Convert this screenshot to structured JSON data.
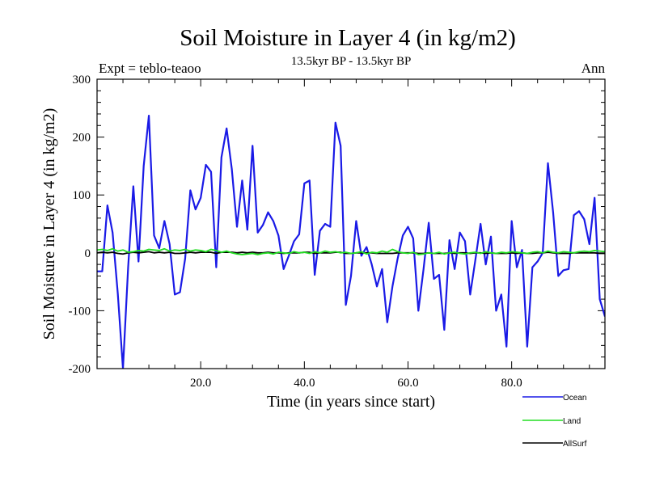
{
  "chart_data": {
    "type": "line",
    "title": "Soil Moisture in Layer 4 (in kg/m2)",
    "subtitle": "13.5kyr BP - 13.5kyr BP",
    "left_label": "Expt = teblo-teaoo",
    "right_label": "Ann",
    "xlabel": "Time (in years since start)",
    "ylabel": "Soil Moisture in Layer 4 (in kg/m2)",
    "xlim": [
      0,
      98
    ],
    "ylim": [
      -200,
      300
    ],
    "xticks": [
      20,
      40,
      60,
      80
    ],
    "xtick_labels": [
      "20.0",
      "40.0",
      "60.0",
      "80.0"
    ],
    "yticks": [
      -200,
      -100,
      0,
      100,
      200,
      300
    ],
    "ytick_labels": [
      "-200",
      "-100",
      "0",
      "100",
      "200",
      "300"
    ],
    "x": [
      0,
      1,
      2,
      3,
      4,
      5,
      6,
      7,
      8,
      9,
      10,
      11,
      12,
      13,
      14,
      15,
      16,
      17,
      18,
      19,
      20,
      21,
      22,
      23,
      24,
      25,
      26,
      27,
      28,
      29,
      30,
      31,
      32,
      33,
      34,
      35,
      36,
      37,
      38,
      39,
      40,
      41,
      42,
      43,
      44,
      45,
      46,
      47,
      48,
      49,
      50,
      51,
      52,
      53,
      54,
      55,
      56,
      57,
      58,
      59,
      60,
      61,
      62,
      63,
      64,
      65,
      66,
      67,
      68,
      69,
      70,
      71,
      72,
      73,
      74,
      75,
      76,
      77,
      78,
      79,
      80,
      81,
      82,
      83,
      84,
      85,
      86,
      87,
      88,
      89,
      90,
      91,
      92,
      93,
      94,
      95,
      96,
      97,
      98
    ],
    "series": [
      {
        "name": "Ocean",
        "color": "#1a1ae6",
        "values": [
          -32,
          -32,
          82,
          35,
          -70,
          -200,
          -25,
          115,
          -15,
          150,
          237,
          30,
          8,
          55,
          15,
          -72,
          -68,
          -10,
          108,
          75,
          95,
          152,
          140,
          -25,
          165,
          215,
          145,
          45,
          125,
          40,
          185,
          35,
          48,
          70,
          55,
          30,
          -28,
          -5,
          20,
          32,
          120,
          125,
          -38,
          38,
          50,
          45,
          225,
          185,
          -90,
          -40,
          55,
          -5,
          10,
          -20,
          -58,
          -28,
          -120,
          -58,
          -10,
          30,
          45,
          25,
          -100,
          -28,
          52,
          -45,
          -38,
          -133,
          22,
          -28,
          35,
          20,
          -72,
          -12,
          50,
          -20,
          28,
          -100,
          -72,
          -162,
          55,
          -25,
          5,
          -162,
          -25,
          -15,
          0,
          155,
          70,
          -40,
          -30,
          -28,
          65,
          72,
          58,
          15,
          95,
          -80,
          -110
        ]
      },
      {
        "name": "Land",
        "color": "#22dd22",
        "values": [
          5,
          6,
          4,
          7,
          3,
          5,
          1,
          2,
          4,
          3,
          6,
          5,
          4,
          7,
          3,
          5,
          4,
          6,
          3,
          5,
          4,
          2,
          6,
          4,
          1,
          3,
          0,
          -2,
          -3,
          -2,
          -1,
          -3,
          -1,
          0,
          -2,
          1,
          0,
          -1,
          2,
          0,
          1,
          -1,
          2,
          0,
          3,
          1,
          2,
          0,
          1,
          -1,
          0,
          2,
          -2,
          1,
          0,
          3,
          1,
          6,
          2,
          0,
          -1,
          1,
          -3,
          -2,
          0,
          -1,
          1,
          -2,
          0,
          1,
          -1,
          -2,
          0,
          1,
          -1,
          2,
          0,
          -1,
          1,
          0,
          2,
          1,
          0,
          -1,
          1,
          2,
          0,
          3,
          1,
          0,
          2,
          1,
          0,
          2,
          3,
          2,
          4,
          3,
          2
        ]
      },
      {
        "name": "AllSurf",
        "color": "#000000",
        "values": [
          0,
          1,
          0,
          1,
          -1,
          -2,
          0,
          1,
          0,
          1,
          2,
          0,
          1,
          0,
          1,
          -1,
          -1,
          0,
          1,
          0,
          1,
          1,
          1,
          -1,
          1,
          1,
          1,
          0,
          1,
          0,
          1,
          0,
          0,
          1,
          0,
          0,
          -1,
          0,
          0,
          0,
          1,
          1,
          -1,
          0,
          0,
          0,
          1,
          1,
          -1,
          -1,
          0,
          0,
          0,
          0,
          -1,
          -1,
          -1,
          -1,
          0,
          0,
          0,
          0,
          -1,
          -1,
          0,
          -1,
          -1,
          -1,
          0,
          -1,
          0,
          0,
          -1,
          0,
          0,
          -1,
          0,
          -1,
          -1,
          -1,
          0,
          -1,
          0,
          -1,
          -1,
          0,
          0,
          1,
          0,
          -1,
          -1,
          -1,
          0,
          0,
          0,
          0,
          0,
          -1,
          -1
        ]
      }
    ],
    "legend": [
      {
        "label": "Ocean",
        "color": "#1a1ae6"
      },
      {
        "label": "Land",
        "color": "#22dd22"
      },
      {
        "label": "AllSurf",
        "color": "#000000"
      }
    ]
  }
}
